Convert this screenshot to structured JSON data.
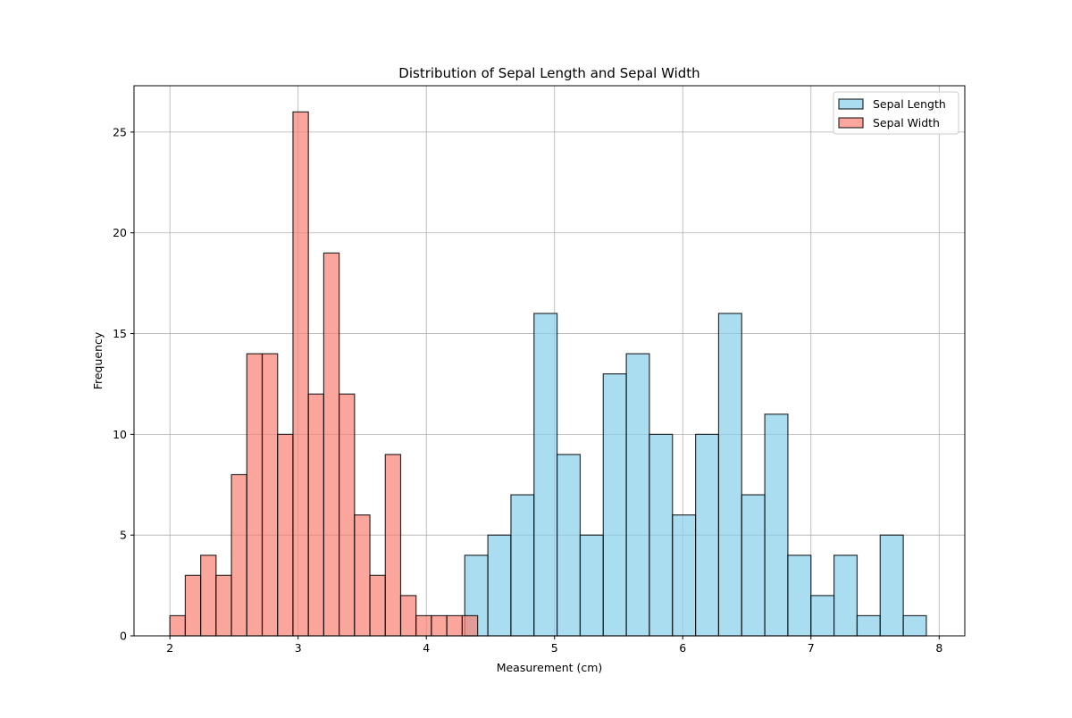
{
  "chart_data": {
    "type": "bar",
    "title": "Distribution of Sepal Length and Sepal Width",
    "xlabel": "Measurement (cm)",
    "ylabel": "Frequency",
    "xlim": [
      1.72,
      8.2
    ],
    "ylim": [
      0,
      27.3
    ],
    "xticks": [
      2,
      3,
      4,
      5,
      6,
      7,
      8
    ],
    "yticks": [
      0,
      5,
      10,
      15,
      20,
      25
    ],
    "grid": true,
    "legend_position": "top-right",
    "series": [
      {
        "name": "Sepal Length",
        "color": "#87CEEB",
        "edge_color": "#000000",
        "bin_start": 4.3,
        "bin_width": 0.18,
        "values": [
          4,
          5,
          7,
          16,
          9,
          5,
          13,
          14,
          10,
          6,
          10,
          16,
          7,
          11,
          4,
          2,
          4,
          1,
          5,
          1
        ]
      },
      {
        "name": "Sepal Width",
        "color": "#FA8072",
        "edge_color": "#000000",
        "bin_start": 2.0,
        "bin_width": 0.12,
        "values": [
          1,
          3,
          4,
          3,
          8,
          14,
          14,
          10,
          26,
          12,
          19,
          12,
          6,
          3,
          9,
          2,
          1,
          1,
          1,
          1
        ]
      }
    ]
  }
}
